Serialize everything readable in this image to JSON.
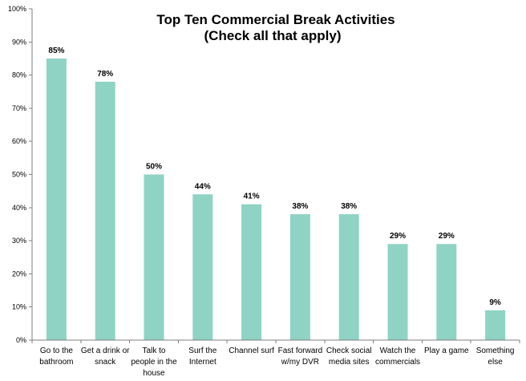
{
  "chart_data": {
    "type": "bar",
    "title_lines": [
      "Top Ten Commercial Break Activities",
      "(Check all that apply)"
    ],
    "categories": [
      [
        "Go to the",
        "bathroom"
      ],
      [
        "Get a drink or",
        "snack"
      ],
      [
        "Talk to",
        "people in the",
        "house"
      ],
      [
        "Surf the",
        "Internet"
      ],
      [
        "Channel surf"
      ],
      [
        "Fast forward",
        "w/my DVR"
      ],
      [
        "Check social",
        "media sites"
      ],
      [
        "Watch the",
        "commercials"
      ],
      [
        "Play a game"
      ],
      [
        "Something",
        "else"
      ]
    ],
    "values": [
      85,
      78,
      50,
      44,
      41,
      38,
      38,
      29,
      29,
      9
    ],
    "value_labels": [
      "85%",
      "78%",
      "50%",
      "44%",
      "41%",
      "38%",
      "38%",
      "29%",
      "29%",
      "9%"
    ],
    "yticks": [
      "0%",
      "10%",
      "20%",
      "30%",
      "40%",
      "50%",
      "60%",
      "70%",
      "80%",
      "90%",
      "100%"
    ],
    "ylim": [
      0,
      100
    ],
    "bar_color": "#8fd3c4",
    "axis_color": "#7f7f7f",
    "grid": false,
    "xlabel": "",
    "ylabel": ""
  }
}
